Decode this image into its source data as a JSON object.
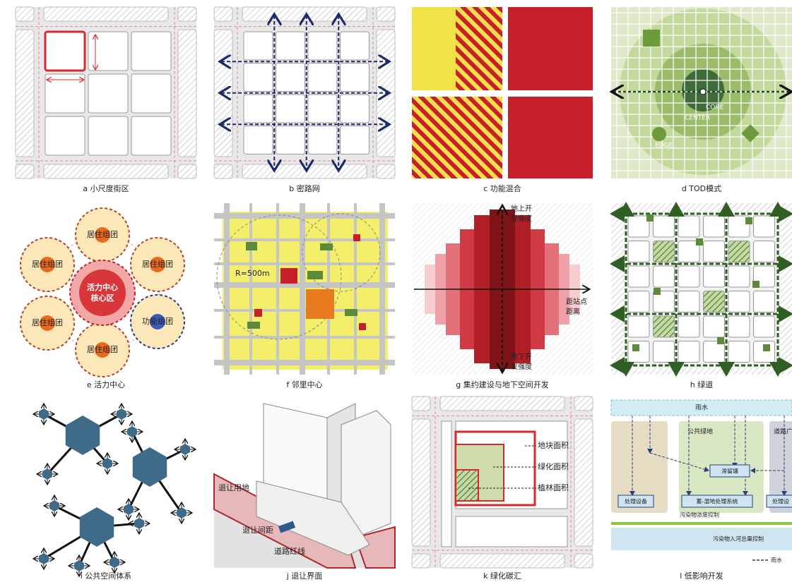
{
  "panels": [
    {
      "caption": "a 小尺度街区"
    },
    {
      "caption": "b 密路网"
    },
    {
      "caption": "c 功能混合"
    },
    {
      "caption": "d TOD模式",
      "labels": [
        "CORE",
        "CENTER",
        "EDGE"
      ]
    },
    {
      "caption": "e 活力中心",
      "labels": [
        "居住组团",
        "居住组团",
        "居住组团",
        "活力中心",
        "核心区",
        "功能组团",
        "居住组团",
        "居住组团"
      ]
    },
    {
      "caption": "f 邻里中心",
      "labels": [
        "R=500m"
      ]
    },
    {
      "caption": "g 集约建设与地下空间开发",
      "labels": [
        "地上开",
        "发强度",
        "距站点",
        "距离",
        "地下开",
        "发强度"
      ]
    },
    {
      "caption": "h 绿道"
    },
    {
      "caption": "i 公共空间体系"
    },
    {
      "caption": "j 退让界面",
      "labels": [
        "退让用地",
        "退让间距",
        "道路红线"
      ]
    },
    {
      "caption": "k 绿化碳汇",
      "labels": [
        "地块面积",
        "绿化面积",
        "植林面积"
      ]
    },
    {
      "caption": "l 低影响开发",
      "labels": [
        "雨水",
        "公共绿地",
        "道路广",
        "滞留塘",
        "处理设备",
        "蓄-湿地处理系统",
        "处理设",
        "污染物浓度控制",
        "污染物入河总量控制",
        "雨水"
      ]
    }
  ]
}
